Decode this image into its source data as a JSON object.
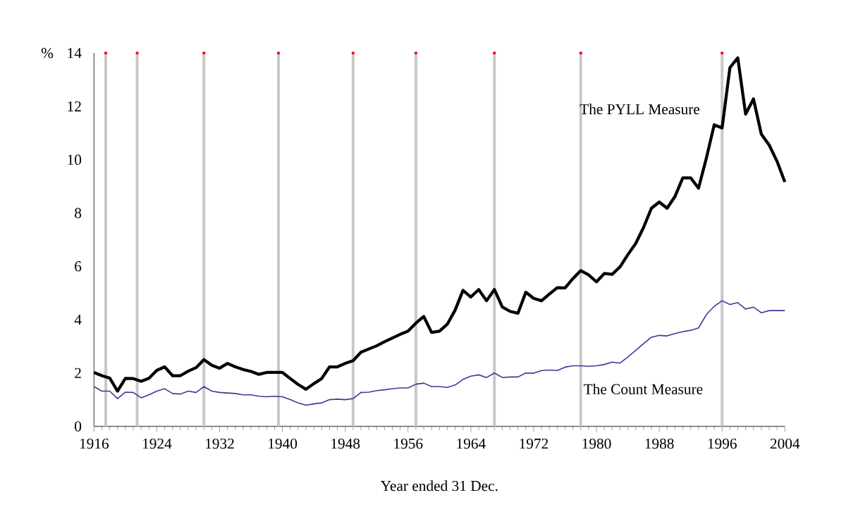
{
  "chart_data": {
    "type": "line",
    "xlabel": "Year ended 31 Dec.",
    "ylabel": "%",
    "x": [
      1916,
      1917,
      1918,
      1919,
      1920,
      1921,
      1922,
      1923,
      1924,
      1925,
      1926,
      1927,
      1928,
      1929,
      1930,
      1931,
      1932,
      1933,
      1934,
      1935,
      1936,
      1937,
      1938,
      1939,
      1940,
      1941,
      1942,
      1943,
      1944,
      1945,
      1946,
      1947,
      1948,
      1949,
      1950,
      1951,
      1952,
      1953,
      1954,
      1955,
      1956,
      1957,
      1958,
      1959,
      1960,
      1961,
      1962,
      1963,
      1964,
      1965,
      1966,
      1967,
      1968,
      1969,
      1970,
      1971,
      1972,
      1973,
      1974,
      1975,
      1976,
      1977,
      1978,
      1979,
      1980,
      1981,
      1982,
      1983,
      1984,
      1985,
      1986,
      1987,
      1988,
      1989,
      1990,
      1991,
      1992,
      1993,
      1994,
      1995,
      1996,
      1997,
      1998,
      1999,
      2000,
      2001,
      2002,
      2003,
      2004
    ],
    "series": [
      {
        "name": "The PYLL Measure",
        "color": "#000000",
        "values": [
          2.02,
          1.9,
          1.81,
          1.32,
          1.8,
          1.79,
          1.69,
          1.8,
          2.1,
          2.23,
          1.9,
          1.9,
          2.07,
          2.2,
          2.5,
          2.29,
          2.18,
          2.36,
          2.23,
          2.13,
          2.06,
          1.95,
          2.02,
          2.02,
          2.02,
          1.79,
          1.57,
          1.39,
          1.6,
          1.79,
          2.23,
          2.23,
          2.36,
          2.46,
          2.78,
          2.9,
          3.02,
          3.17,
          3.31,
          3.45,
          3.57,
          3.87,
          4.12,
          3.52,
          3.57,
          3.83,
          4.36,
          5.1,
          4.85,
          5.13,
          4.71,
          5.13,
          4.48,
          4.31,
          4.24,
          5.03,
          4.8,
          4.71,
          4.96,
          5.2,
          5.19,
          5.54,
          5.84,
          5.68,
          5.42,
          5.73,
          5.7,
          5.98,
          6.44,
          6.86,
          7.46,
          8.18,
          8.41,
          8.18,
          8.62,
          9.32,
          9.32,
          8.93,
          10.06,
          11.31,
          11.19,
          13.45,
          13.82,
          11.71,
          12.28,
          10.96,
          10.55,
          9.94,
          9.16
        ]
      },
      {
        "name": "The Count Measure",
        "color": "#3a3a9a",
        "values": [
          1.49,
          1.32,
          1.32,
          1.04,
          1.28,
          1.27,
          1.07,
          1.18,
          1.32,
          1.41,
          1.23,
          1.21,
          1.32,
          1.27,
          1.49,
          1.32,
          1.27,
          1.25,
          1.23,
          1.18,
          1.18,
          1.13,
          1.11,
          1.13,
          1.11,
          1.0,
          0.88,
          0.79,
          0.84,
          0.88,
          1.0,
          1.02,
          1.0,
          1.04,
          1.27,
          1.28,
          1.34,
          1.37,
          1.41,
          1.44,
          1.44,
          1.58,
          1.62,
          1.49,
          1.49,
          1.46,
          1.55,
          1.76,
          1.88,
          1.93,
          1.83,
          2.0,
          1.83,
          1.85,
          1.85,
          2.0,
          1.99,
          2.09,
          2.11,
          2.09,
          2.22,
          2.27,
          2.27,
          2.25,
          2.27,
          2.32,
          2.41,
          2.37,
          2.6,
          2.85,
          3.1,
          3.34,
          3.41,
          3.39,
          3.48,
          3.55,
          3.6,
          3.69,
          4.19,
          4.5,
          4.71,
          4.57,
          4.64,
          4.4,
          4.47,
          4.26,
          4.34,
          4.34,
          4.34
        ]
      }
    ],
    "xlim": [
      1916,
      2004
    ],
    "xticks": [
      1916,
      1924,
      1932,
      1940,
      1948,
      1956,
      1964,
      1972,
      1980,
      1988,
      1996,
      2004
    ],
    "ylim": [
      0,
      14
    ],
    "yticks": [
      0,
      2,
      4,
      6,
      8,
      10,
      12,
      14
    ],
    "ref_lines": [
      {
        "axis": "x",
        "value": 1917.5,
        "color": "#c8c8c8"
      },
      {
        "axis": "x",
        "value": 1921.5,
        "color": "#c8c8c8"
      },
      {
        "axis": "x",
        "value": 1930,
        "color": "#c8c8c8"
      },
      {
        "axis": "x",
        "value": 1939.5,
        "color": "#c8c8c8"
      },
      {
        "axis": "x",
        "value": 1949,
        "color": "#c8c8c8"
      },
      {
        "axis": "x",
        "value": 1957,
        "color": "#c8c8c8"
      },
      {
        "axis": "x",
        "value": 1967,
        "color": "#c8c8c8"
      },
      {
        "axis": "x",
        "value": 1978,
        "color": "#c8c8c8"
      },
      {
        "axis": "x",
        "value": 1996,
        "color": "#c8c8c8"
      }
    ],
    "grid": false,
    "legend": false,
    "marker": "none",
    "line_style": "solid"
  }
}
